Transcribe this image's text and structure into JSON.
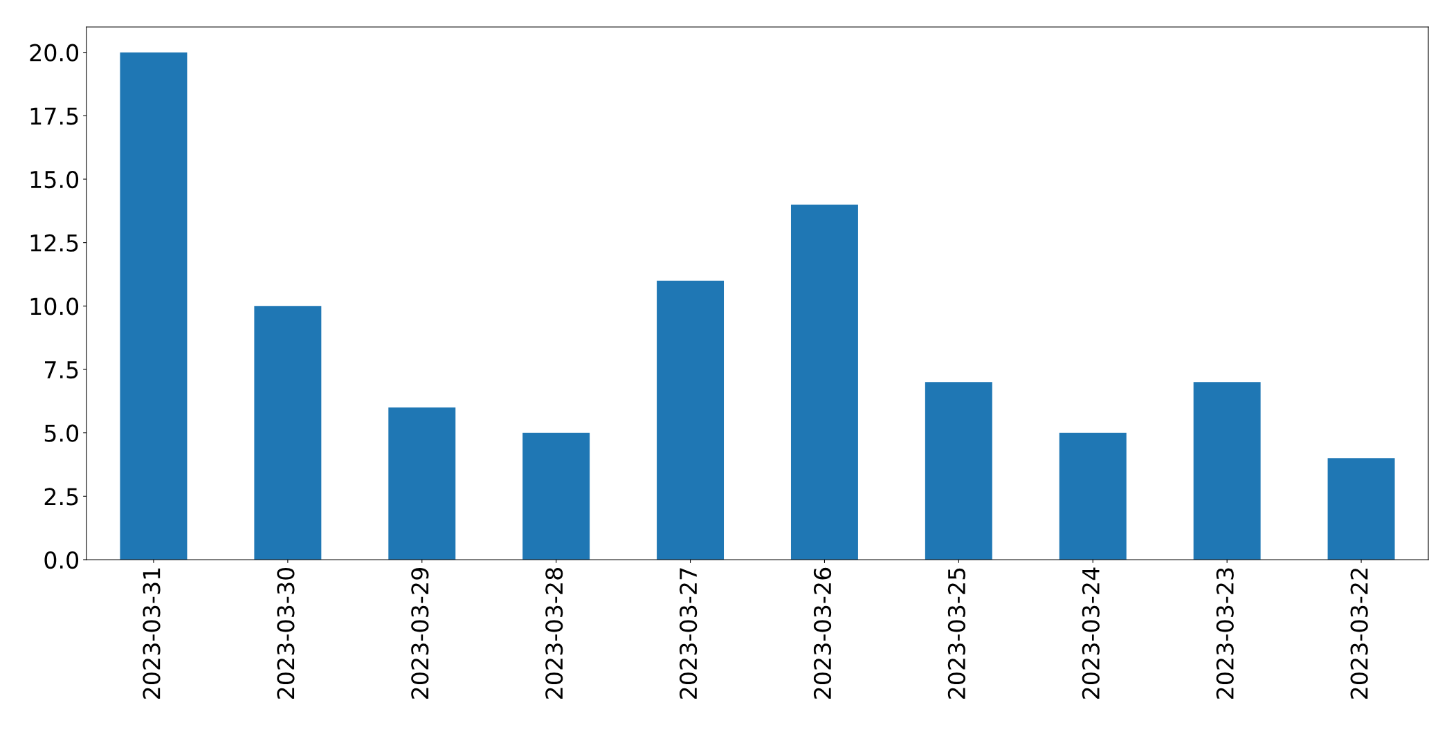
{
  "chart_data": {
    "type": "bar",
    "categories": [
      "2023-03-31",
      "2023-03-30",
      "2023-03-29",
      "2023-03-28",
      "2023-03-27",
      "2023-03-26",
      "2023-03-25",
      "2023-03-24",
      "2023-03-23",
      "2023-03-22"
    ],
    "values": [
      20,
      10,
      6,
      5,
      11,
      14,
      7,
      5,
      7,
      4
    ],
    "color": "#1f77b4",
    "ylim": [
      0,
      21
    ],
    "yticks": [
      {
        "value": 0,
        "label": "0.0"
      },
      {
        "value": 2.5,
        "label": "2.5"
      },
      {
        "value": 5,
        "label": "5.0"
      },
      {
        "value": 7.5,
        "label": "7.5"
      },
      {
        "value": 10,
        "label": "10.0"
      },
      {
        "value": 12.5,
        "label": "12.5"
      },
      {
        "value": 15,
        "label": "15.0"
      },
      {
        "value": 17.5,
        "label": "17.5"
      },
      {
        "value": 20,
        "label": "20.0"
      }
    ],
    "grid": false
  }
}
